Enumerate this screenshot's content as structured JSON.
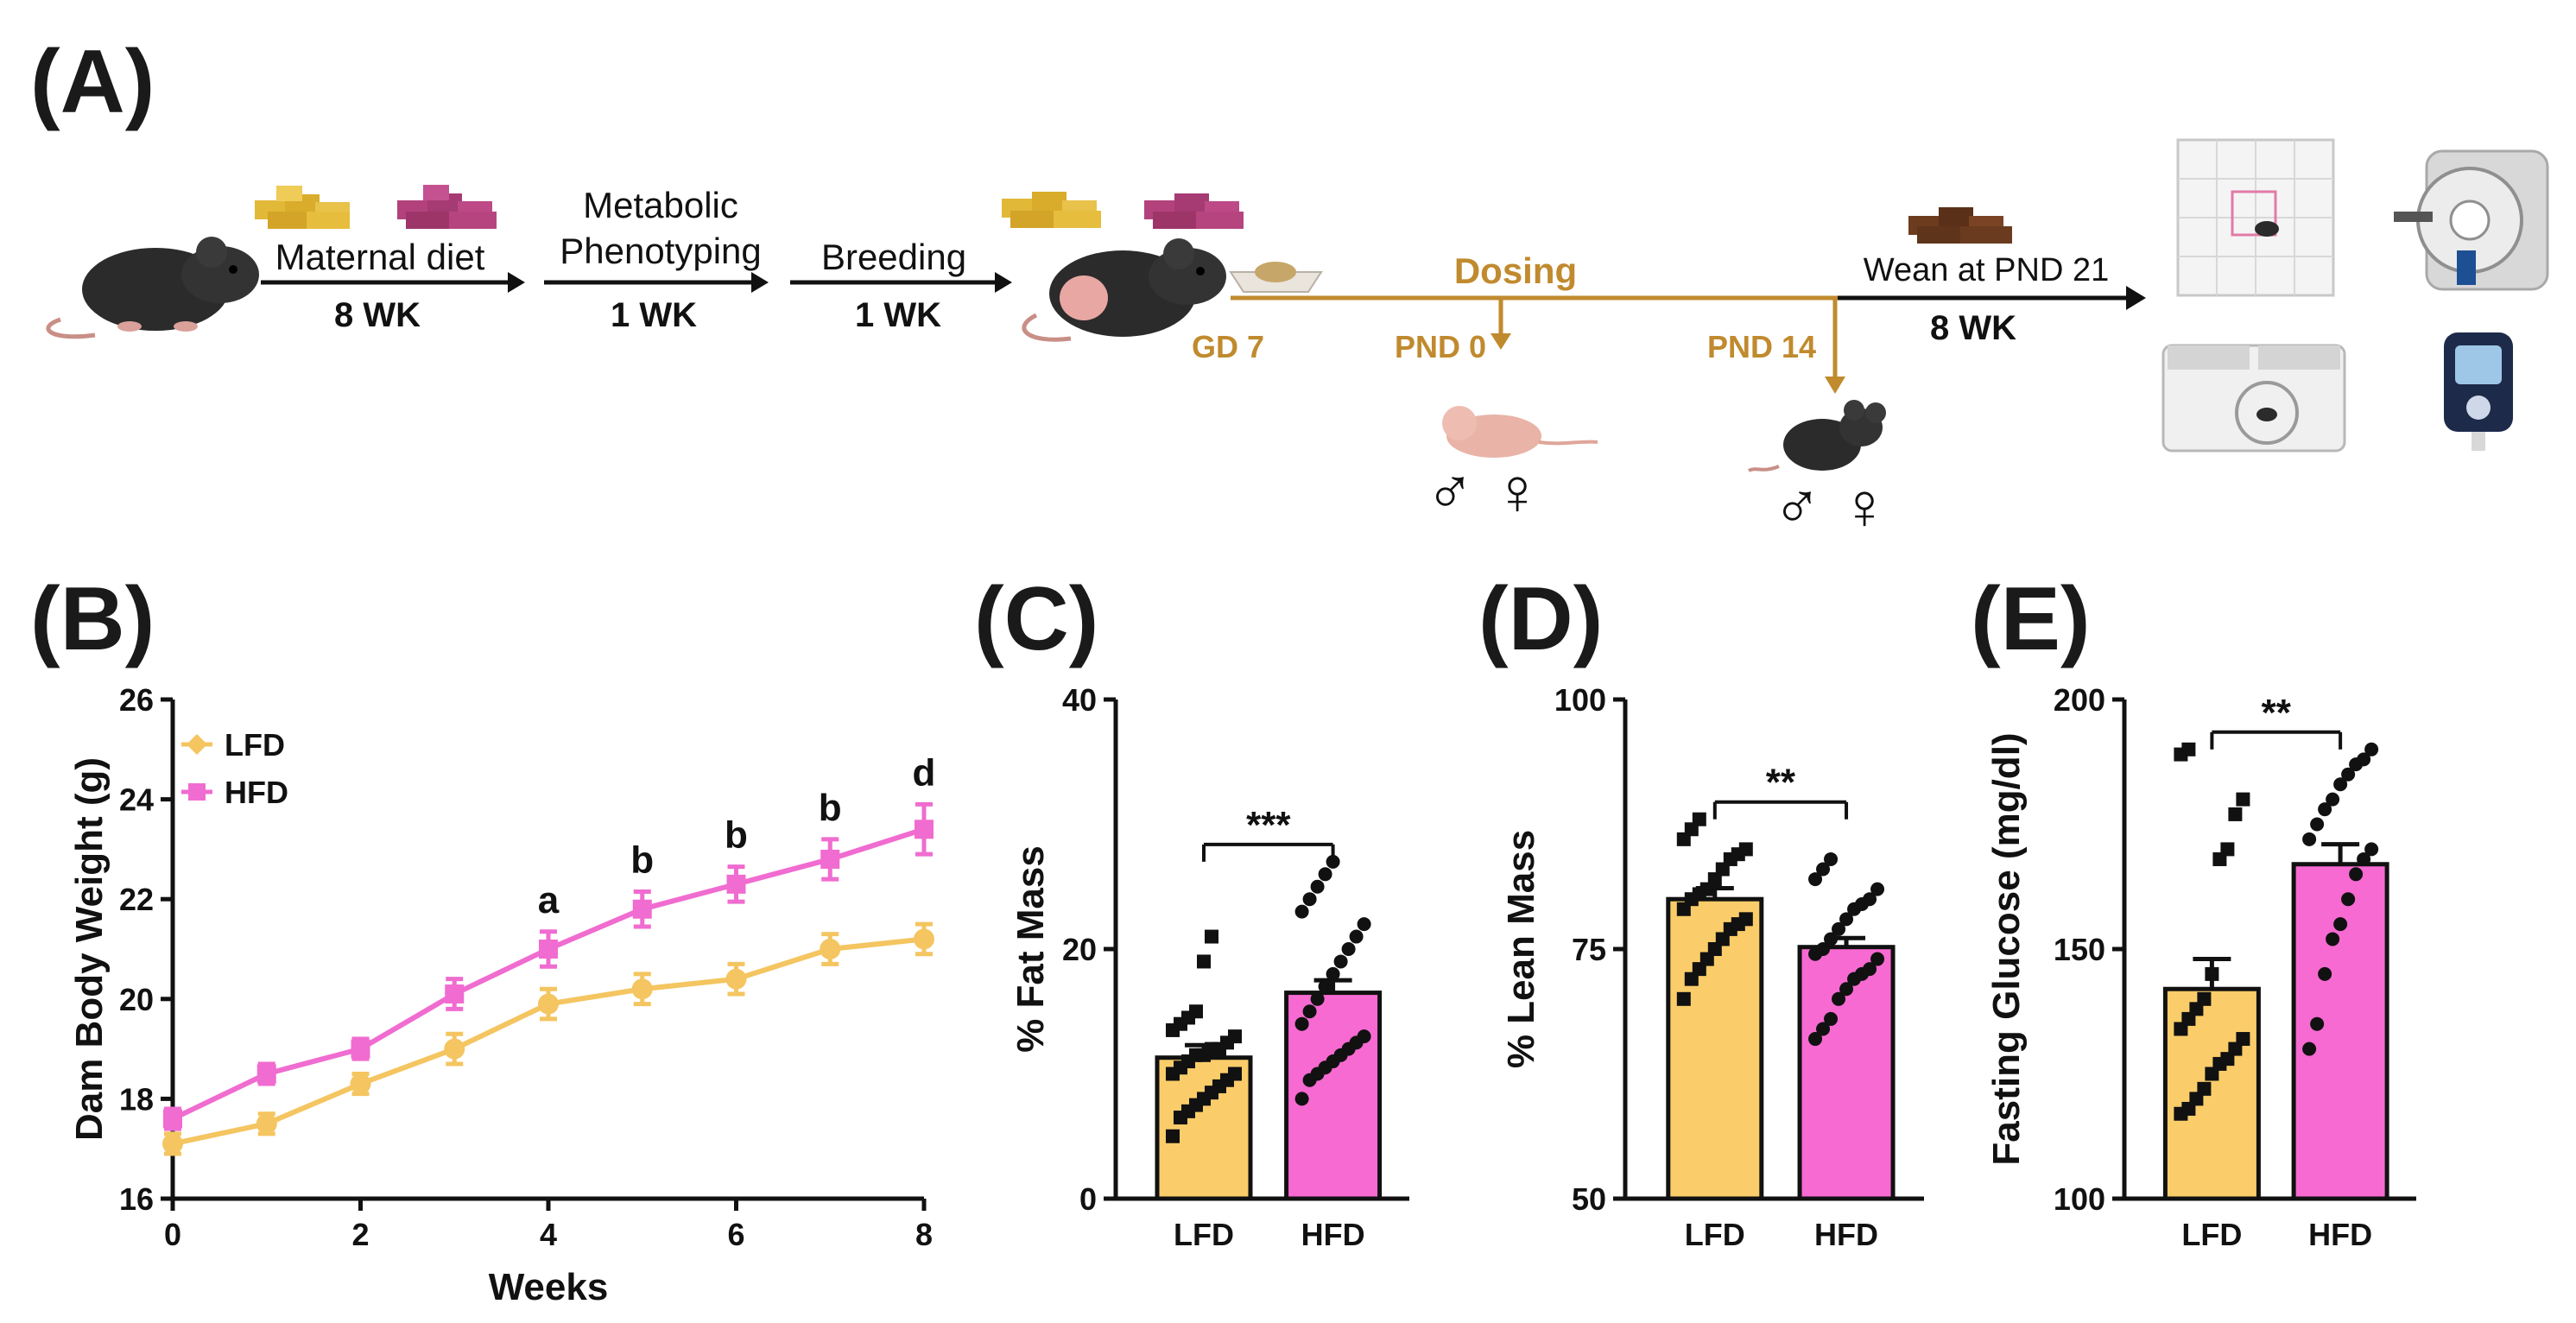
{
  "colors": {
    "lfd": "#fbcd6a",
    "lfd_line": "#f4c560",
    "hfd": "#f76ad2",
    "hfd_line": "#f06cd0",
    "dosing": "#c08a2e",
    "black": "#111111"
  },
  "panelA": {
    "label": "(A)",
    "maternal_diet": "Maternal diet",
    "maternal_duration": "8 WK",
    "metabolic_line1": "Metabolic",
    "metabolic_line2": "Phenotyping",
    "metabolic_duration": "1 WK",
    "breeding": "Breeding",
    "breeding_duration": "1 WK",
    "dosing": "Dosing",
    "gd": "GD 7",
    "pnd0": "PND 0",
    "pnd14": "PND 14",
    "wean": "Wean at PND 21",
    "wean_duration": "8 WK",
    "sex_symbols": "♂ ♀"
  },
  "chart_data": [
    {
      "panel": "(B)",
      "type": "line",
      "title": "",
      "xlabel": "Weeks",
      "ylabel": "Dam Body Weight (g)",
      "xlim": [
        0,
        8
      ],
      "ylim": [
        16,
        26
      ],
      "xticks": [
        "0",
        "2",
        "4",
        "6",
        "8"
      ],
      "yticks": [
        "16",
        "18",
        "20",
        "22",
        "24",
        "26"
      ],
      "legend": [
        "LFD",
        "HFD"
      ],
      "legend_position": "top-left",
      "x": [
        0,
        1,
        2,
        3,
        4,
        5,
        6,
        7,
        8
      ],
      "series": [
        {
          "name": "LFD",
          "values": [
            17.1,
            17.5,
            18.3,
            19.0,
            19.9,
            20.2,
            20.4,
            21.0,
            21.2
          ],
          "err": [
            0.2,
            0.2,
            0.2,
            0.3,
            0.3,
            0.3,
            0.3,
            0.3,
            0.3
          ]
        },
        {
          "name": "HFD",
          "values": [
            17.6,
            18.5,
            19.0,
            20.1,
            21.0,
            21.8,
            22.3,
            22.8,
            23.4
          ],
          "err": [
            0.2,
            0.2,
            0.2,
            0.3,
            0.35,
            0.35,
            0.35,
            0.4,
            0.5
          ]
        }
      ],
      "annotations": [
        {
          "x": 4,
          "text": "a"
        },
        {
          "x": 5,
          "text": "b"
        },
        {
          "x": 6,
          "text": "b"
        },
        {
          "x": 7,
          "text": "b"
        },
        {
          "x": 8,
          "text": "d"
        }
      ]
    },
    {
      "panel": "(C)",
      "type": "bar",
      "ylabel": "% Fat Mass",
      "categories": [
        "LFD",
        "HFD"
      ],
      "values": [
        11.3,
        16.5
      ],
      "err": [
        1.0,
        1.0
      ],
      "ylim": [
        0,
        40
      ],
      "yticks": [
        "0",
        "20",
        "40"
      ],
      "significance": "***",
      "points": [
        [
          5,
          6.5,
          7,
          7.5,
          8,
          8.5,
          9,
          9.5,
          10,
          10,
          10.5,
          11,
          11.5,
          11.5,
          12,
          12,
          12.5,
          13,
          13.5,
          14,
          14.5,
          15,
          19,
          21
        ],
        [
          8,
          9.5,
          10,
          10.5,
          11,
          11.5,
          12,
          12.5,
          13,
          14,
          15,
          16,
          17,
          18,
          19,
          20,
          21,
          22,
          23,
          24,
          25,
          26,
          27
        ]
      ]
    },
    {
      "panel": "(D)",
      "type": "bar",
      "ylabel": "% Lean Mass",
      "categories": [
        "LFD",
        "HFD"
      ],
      "values": [
        80.0,
        75.2
      ],
      "err": [
        1.1,
        0.9
      ],
      "ylim": [
        50,
        100
      ],
      "yticks": [
        "50",
        "75",
        "100"
      ],
      "significance": "**",
      "points": [
        [
          70,
          72,
          73,
          74,
          75,
          76,
          77,
          77.5,
          78,
          79,
          80,
          80.5,
          81,
          82,
          83,
          84,
          84.5,
          85,
          86,
          87,
          88
        ],
        [
          66,
          67,
          68,
          70,
          71,
          72,
          72.5,
          73,
          74,
          74.5,
          75,
          76,
          77,
          78,
          79,
          79.5,
          80,
          81,
          82,
          83,
          84
        ]
      ]
    },
    {
      "panel": "(E)",
      "type": "bar",
      "ylabel": "Fasting Glucose (mg/dl)",
      "categories": [
        "LFD",
        "HFD"
      ],
      "values": [
        142,
        167
      ],
      "err": [
        6,
        4
      ],
      "ylim": [
        100,
        200
      ],
      "yticks": [
        "100",
        "150",
        "200"
      ],
      "significance": "**",
      "points": [
        [
          117,
          118,
          120,
          122,
          125,
          127,
          128,
          130,
          132,
          134,
          136,
          138,
          140,
          145,
          168,
          170,
          177,
          180,
          189,
          190
        ],
        [
          130,
          135,
          145,
          152,
          155,
          160,
          165,
          168,
          170,
          172,
          175,
          178,
          180,
          183,
          185,
          187,
          188,
          190
        ]
      ]
    }
  ]
}
